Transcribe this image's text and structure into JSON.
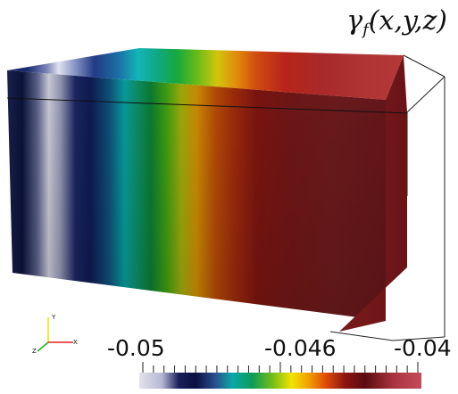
{
  "title": {
    "gamma": "γ",
    "sub": "f",
    "args": "(x,y,z)"
  },
  "colorbar": {
    "tick_labels": [
      "-0.05",
      "-0.046",
      "-0.04"
    ],
    "colors": [
      "#d8d8e8",
      "#b0b4d0",
      "#1a1f58",
      "#0a1040",
      "#2b4c8c",
      "#0aa6a6",
      "#10a060",
      "#7fbf1a",
      "#f2e200",
      "#f29a00",
      "#e04a0a",
      "#8a1410",
      "#5a0c10",
      "#a8343e",
      "#c04a58"
    ]
  },
  "axes_triad": {
    "x": "x",
    "y": "y",
    "z": "z"
  }
}
